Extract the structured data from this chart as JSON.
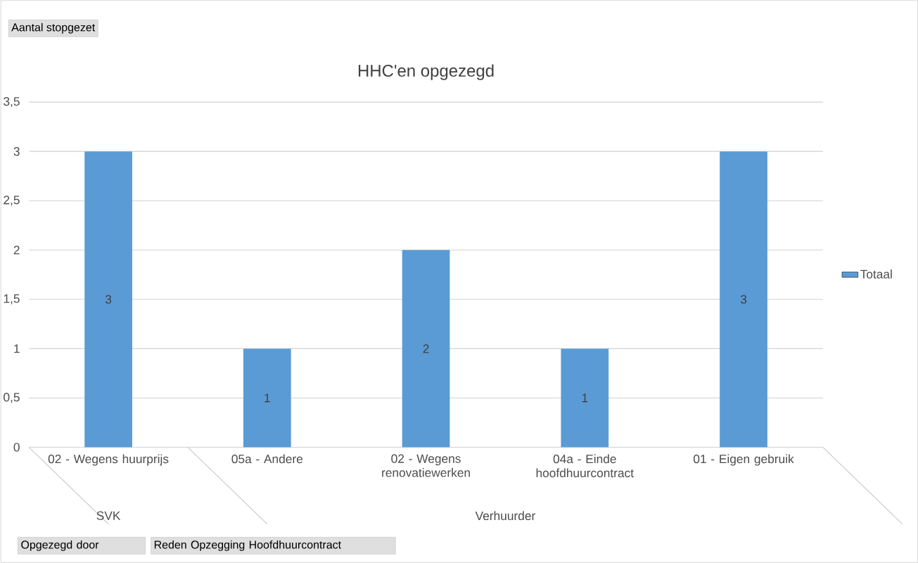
{
  "chart_data": {
    "type": "bar",
    "title": "HHC'en opgezegd",
    "categories": [
      "02 - Wegens huurprijs",
      "05a - Andere",
      "02 - Wegens renovatiewerken",
      "04a - Einde hoofdhuurcontract",
      "01 - Eigen gebruik"
    ],
    "series": [
      {
        "name": "Totaal",
        "color": "#5b9bd5",
        "values": [
          3,
          1,
          2,
          1,
          3
        ]
      }
    ],
    "ylim": [
      0,
      3.5
    ],
    "yticks": [
      0,
      {
        "value": 0.5,
        "label": "0,5"
      },
      1,
      {
        "value": 1.5,
        "label": "1,5"
      },
      2,
      {
        "value": 2.5,
        "label": "2,5"
      },
      3,
      {
        "value": 3.5,
        "label": "3,5"
      }
    ],
    "grid": "y",
    "legend": "right",
    "data_labels": true,
    "annotations": [
      "Aantal stopgezet",
      "SVK",
      "Verhuurder",
      "Opgezegd door",
      "Reden  Opzegging Hoofdhuurcontract"
    ]
  }
}
